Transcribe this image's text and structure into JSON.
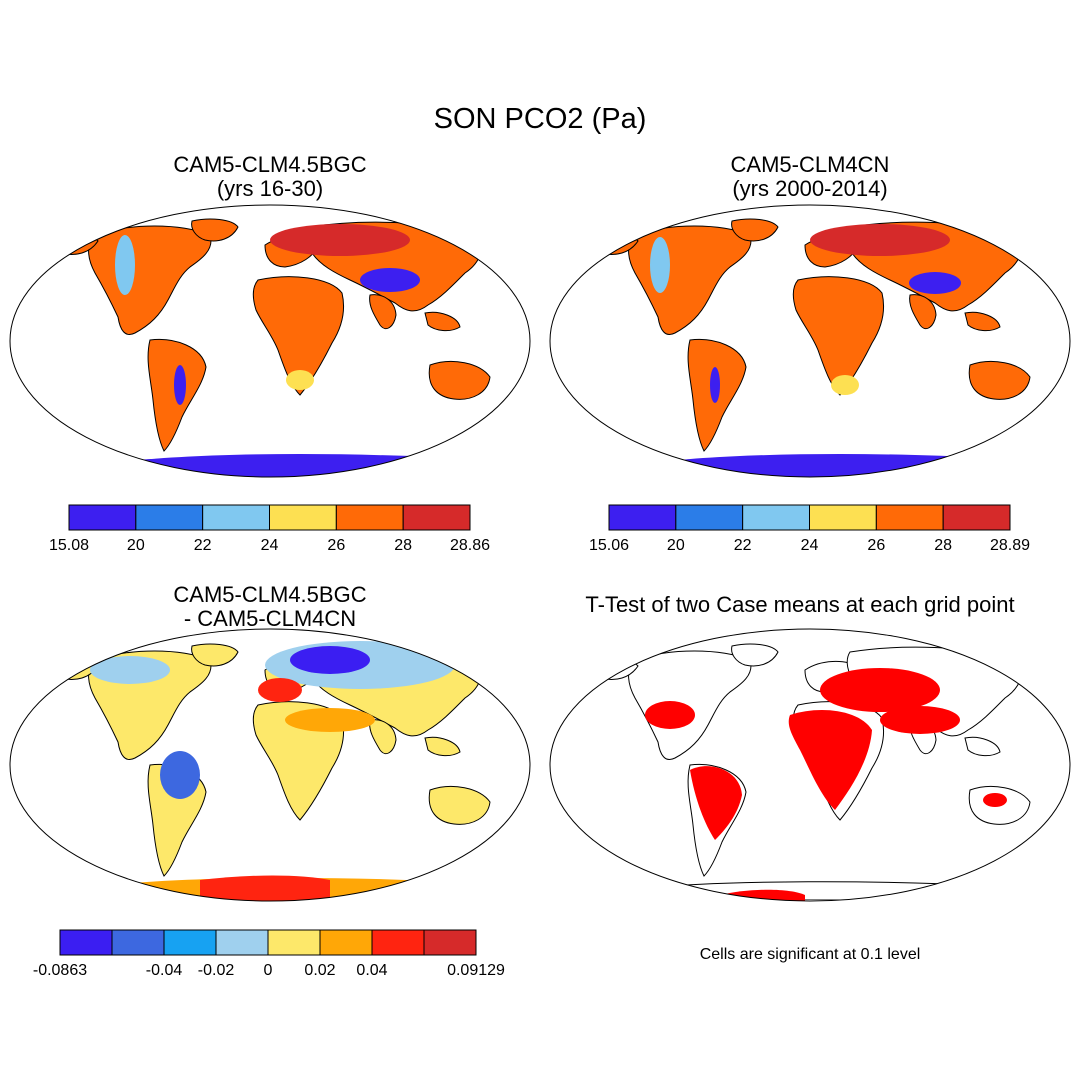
{
  "figure": {
    "title": "SON PCO2 (Pa)",
    "note": "Cells are significant at 0.1 level"
  },
  "panels": [
    {
      "line1": "CAM5-CLM4.5BGC",
      "line2": "(yrs 16-30)",
      "colorbar": {
        "colors": [
          "#3d1ff0",
          "#2b7de8",
          "#80c8f0",
          "#fde052",
          "#ff6a07",
          "#d62a2a"
        ],
        "labels": [
          "15.08",
          "20",
          "22",
          "24",
          "26",
          "28",
          "28.86"
        ],
        "label_edges": [
          0,
          1,
          2,
          3,
          4,
          5,
          6
        ]
      }
    },
    {
      "line1": "CAM5-CLM4CN",
      "line2": "(yrs 2000-2014)",
      "colorbar": {
        "colors": [
          "#3d1ff0",
          "#2b7de8",
          "#80c8f0",
          "#fde052",
          "#ff6a07",
          "#d62a2a"
        ],
        "labels": [
          "15.06",
          "20",
          "22",
          "24",
          "26",
          "28",
          "28.89"
        ],
        "label_edges": [
          0,
          1,
          2,
          3,
          4,
          5,
          6
        ]
      }
    },
    {
      "line1": "CAM5-CLM4.5BGC",
      "line2": "- CAM5-CLM4CN",
      "colorbar": {
        "colors": [
          "#3b1ef2",
          "#3d68e0",
          "#17a2f2",
          "#9fd0ee",
          "#fde86a",
          "#ffa707",
          "#ff2410",
          "#d62a2a"
        ],
        "labels": [
          "-0.0863",
          "-0.04",
          "-0.02",
          "0",
          "0.02",
          "0.04",
          "0.09129"
        ],
        "label_edges": [
          0,
          2,
          3,
          4,
          5,
          6,
          8
        ]
      }
    },
    {
      "line1": "T-Test of two Case means at each grid point"
    }
  ]
}
